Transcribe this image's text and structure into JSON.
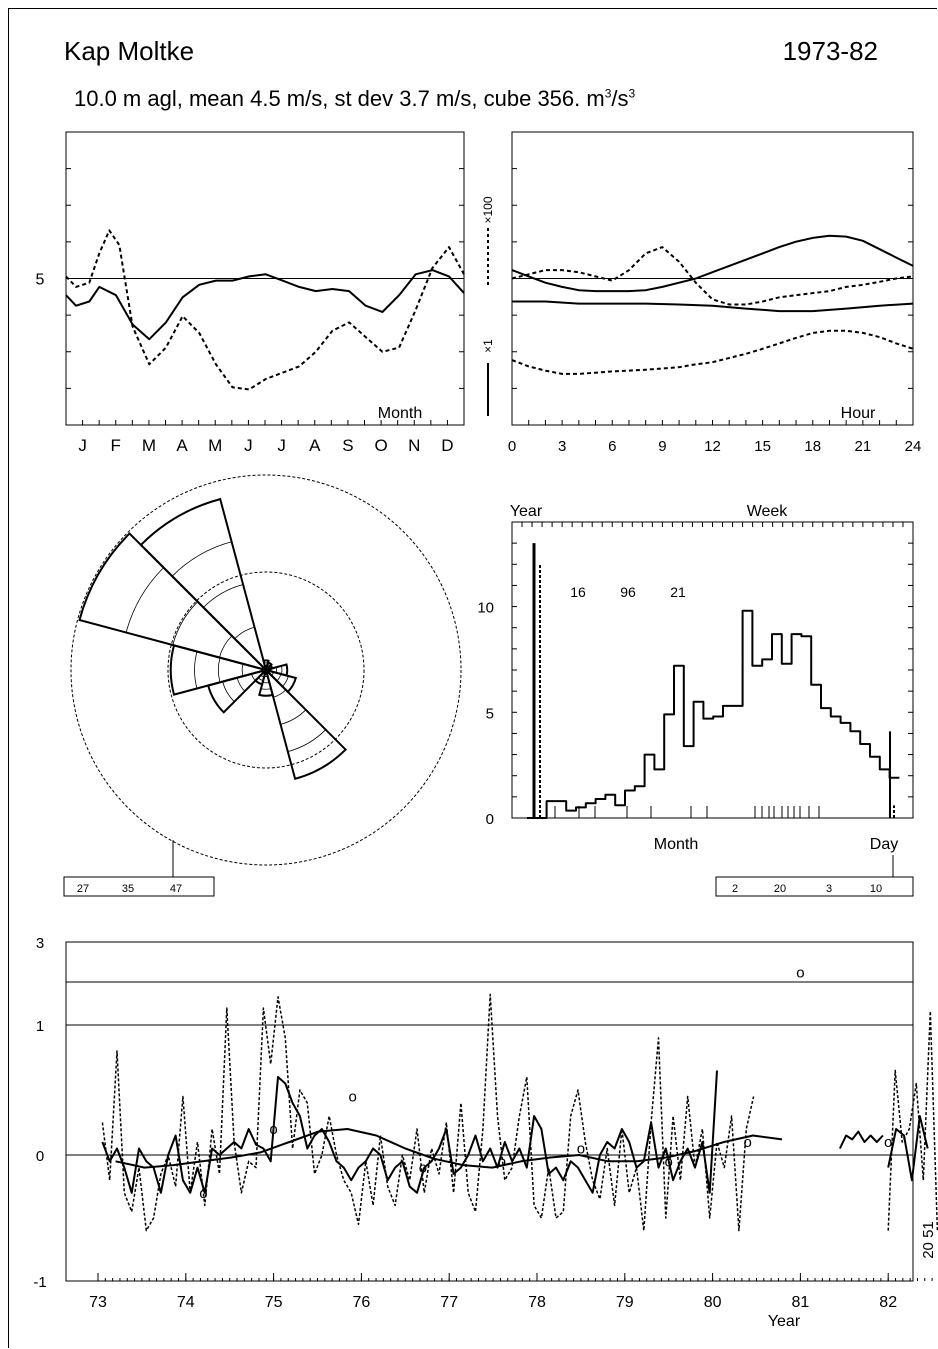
{
  "header": {
    "station": "Kap Moltke",
    "period": "1973-82",
    "stats": "10.0 m agl, mean  4.5 m/s, st dev  3.7 m/s, cube  356. m",
    "stats_unit_sup1": "3",
    "stats_unit_mid": "/s",
    "stats_unit_sup2": "3"
  },
  "chart_data": [
    {
      "id": "annual-cycle",
      "type": "line",
      "xlabel": "Month",
      "categories": [
        "J",
        "F",
        "M",
        "A",
        "M",
        "J",
        "J",
        "A",
        "S",
        "O",
        "N",
        "D"
      ],
      "y_tick_labels": [
        "5"
      ],
      "series": [
        {
          "style": "solid",
          "x": [
            0,
            0.3,
            0.7,
            1.0,
            1.5,
            2.0,
            2.5,
            3.0,
            3.5,
            4.0,
            4.5,
            5.0,
            5.5,
            6.0,
            6.5,
            7.0,
            7.5,
            8.0,
            8.5,
            9.0,
            9.5,
            10.0,
            10.5,
            11.0,
            11.5,
            11.95
          ],
          "values": [
            4.6,
            4.35,
            4.45,
            4.8,
            4.6,
            3.9,
            3.55,
            3.95,
            4.55,
            4.85,
            4.95,
            4.95,
            5.05,
            5.1,
            4.95,
            4.8,
            4.7,
            4.75,
            4.7,
            4.35,
            4.2,
            4.6,
            5.1,
            5.2,
            5.05,
            4.65
          ]
        },
        {
          "style": "dashed",
          "x": [
            0,
            0.3,
            0.7,
            1.0,
            1.3,
            1.6,
            2.0,
            2.5,
            3.0,
            3.5,
            4.0,
            4.5,
            5.0,
            5.5,
            6.0,
            6.5,
            7.0,
            7.5,
            8.0,
            8.5,
            9.0,
            9.5,
            10.0,
            10.5,
            11.0,
            11.5,
            11.95
          ],
          "values": [
            5.05,
            4.8,
            4.9,
            5.6,
            6.15,
            5.8,
            3.85,
            2.95,
            3.35,
            4.1,
            3.7,
            2.95,
            2.4,
            2.35,
            2.6,
            2.75,
            2.9,
            3.25,
            3.75,
            3.95,
            3.6,
            3.25,
            3.35,
            4.25,
            5.25,
            5.75,
            5.1
          ]
        }
      ]
    },
    {
      "id": "diurnal-cycle",
      "type": "line",
      "xlabel": "Hour",
      "x_ticks": [
        "0",
        "3",
        "6",
        "9",
        "12",
        "15",
        "18",
        "21",
        "24"
      ],
      "side_labels": [
        "×100",
        "×1"
      ],
      "series": [
        {
          "style": "solid",
          "x": [
            0,
            1,
            2,
            3,
            4,
            5,
            6,
            7,
            8,
            9,
            10,
            11,
            12,
            13,
            14,
            15,
            16,
            17,
            18,
            19,
            20,
            21,
            22,
            23,
            24
          ],
          "values": [
            5.2,
            5.05,
            4.9,
            4.8,
            4.72,
            4.7,
            4.7,
            4.7,
            4.72,
            4.8,
            4.9,
            5.0,
            5.15,
            5.3,
            5.45,
            5.6,
            5.75,
            5.88,
            5.97,
            6.02,
            6.0,
            5.9,
            5.7,
            5.5,
            5.3
          ]
        },
        {
          "style": "solid",
          "x": [
            0,
            2,
            4,
            6,
            8,
            10,
            12,
            14,
            16,
            18,
            20,
            22,
            24
          ],
          "values": [
            4.45,
            4.45,
            4.4,
            4.4,
            4.4,
            4.38,
            4.35,
            4.28,
            4.22,
            4.22,
            4.28,
            4.35,
            4.4
          ]
        },
        {
          "style": "dashed",
          "x": [
            0,
            1,
            2,
            3,
            4,
            5,
            6,
            7,
            8,
            9,
            10,
            11,
            12,
            13,
            14,
            15,
            16,
            17,
            18,
            19,
            20,
            21,
            22,
            23,
            24
          ],
          "values": [
            5.0,
            5.1,
            5.2,
            5.2,
            5.15,
            5.05,
            4.95,
            5.2,
            5.6,
            5.75,
            5.4,
            4.9,
            4.5,
            4.38,
            4.38,
            4.45,
            4.55,
            4.6,
            4.65,
            4.7,
            4.8,
            4.85,
            4.92,
            5.0,
            5.05
          ]
        },
        {
          "style": "dashed",
          "x": [
            0,
            1,
            2,
            3,
            4,
            5,
            6,
            7,
            8,
            9,
            10,
            11,
            12,
            13,
            14,
            15,
            16,
            17,
            18,
            19,
            20,
            21,
            22,
            23,
            24
          ],
          "values": [
            3.05,
            2.9,
            2.8,
            2.72,
            2.72,
            2.75,
            2.78,
            2.8,
            2.82,
            2.85,
            2.88,
            2.95,
            3.0,
            3.1,
            3.2,
            3.32,
            3.45,
            3.58,
            3.7,
            3.75,
            3.75,
            3.7,
            3.6,
            3.45,
            3.32
          ]
        }
      ]
    },
    {
      "id": "wind-rose",
      "type": "other",
      "subtype": "wind-rose",
      "scale_labels": [
        "27",
        "35",
        "47"
      ],
      "sectors_deg": [
        0,
        30,
        60,
        90,
        120,
        150,
        180,
        210,
        240,
        270,
        300,
        330
      ],
      "frequency_percent": [
        1.5,
        1.2,
        1.0,
        3.3,
        4.8,
        17.5,
        4.0,
        2.3,
        9.3,
        14.8,
        30.0,
        27.5
      ],
      "rings_percent": [
        20,
        40
      ]
    },
    {
      "id": "frequency-distribution",
      "type": "bar",
      "subtype": "step-histogram",
      "top_labels": [
        "Year",
        "Week"
      ],
      "bottom_labels": [
        "Month",
        "Day"
      ],
      "y_tick_labels": [
        "0",
        "5",
        "10"
      ],
      "ylim": [
        0,
        14
      ],
      "annotations": [
        "16",
        "96",
        "21"
      ],
      "box_labels": [
        "2",
        "20",
        "3",
        "10"
      ],
      "bin_width_ms": 1,
      "bin_start_ms": 0,
      "values": [
        0,
        0,
        0.8,
        0.8,
        0.35,
        0.5,
        0.7,
        0.9,
        1.1,
        0.6,
        1.3,
        1.5,
        3.0,
        2.3,
        4.9,
        7.2,
        3.4,
        5.5,
        4.7,
        4.8,
        5.3,
        5.3,
        9.8,
        7.2,
        7.5,
        8.7,
        7.3,
        8.7,
        8.6,
        6.3,
        5.2,
        4.8,
        4.5,
        4.1,
        3.5,
        2.9,
        2.3,
        1.9
      ],
      "year_bar": 13.0,
      "year_bar_dashed": 12.0,
      "day_bar": 4.1,
      "day_bar_dashed": 0.6
    },
    {
      "id": "interannual",
      "type": "line",
      "xlabel": "Year",
      "x_ticks": [
        "73",
        "74",
        "75",
        "76",
        "77",
        "78",
        "79",
        "80",
        "81",
        "82"
      ],
      "y_tick_labels": [
        "-1",
        "0",
        "1",
        "3"
      ],
      "side_label": "20 51",
      "series": [
        {
          "style": "solid-monthly",
          "values": [
            0.1,
            -0.05,
            0.05,
            -0.1,
            -0.3,
            0.05,
            -0.05,
            -0.1,
            -0.3,
            0,
            0.15,
            -0.2,
            -0.3,
            -0.1,
            -0.3,
            0.05,
            0,
            0.05,
            0.1,
            0.05,
            0.2,
            0.08,
            0.05,
            -0.05,
            0.6,
            0.55,
            0.4,
            0.3,
            0.05,
            0.15,
            0.2,
            0.1,
            -0.05,
            -0.1,
            -0.2,
            -0.1,
            -0.05,
            0.05,
            0,
            -0.2,
            -0.1,
            -0.05,
            -0.25,
            -0.3,
            -0.1,
            -0.05,
            0.05,
            0.2,
            -0.15,
            -0.1,
            0,
            0.15,
            -0.05,
            0.05,
            -0.1,
            0.1,
            -0.05,
            0.05,
            -0.1,
            0.3,
            0.2,
            -0.15,
            -0.1,
            -0.2,
            -0.05,
            -0.1,
            -0.2,
            -0.3,
            0,
            0.1,
            0.05,
            0.2,
            0.1,
            -0.1,
            -0.05,
            0.25,
            -0.1,
            0.05,
            -0.2,
            -0.05,
            0.05,
            -0.1,
            0.1,
            -0.3,
            0.65
          ]
        },
        {
          "style": "dashed-monthly",
          "values": [
            0.25,
            -0.2,
            0.8,
            -0.3,
            -0.45,
            -0.1,
            -0.6,
            -0.5,
            -0.15,
            0,
            -0.25,
            0.45,
            -0.3,
            0.1,
            -0.4,
            0.2,
            -0.15,
            1.25,
            0.1,
            -0.3,
            -0.05,
            -0.1,
            1.25,
            0.7,
            1.45,
            0.9,
            0.05,
            0.5,
            0.4,
            -0.15,
            0,
            0.3,
            0,
            -0.2,
            -0.3,
            -0.55,
            -0.05,
            -0.4,
            0.15,
            -0.25,
            -0.4,
            0,
            -0.2,
            0.2,
            -0.3,
            0.05,
            -0.15,
            0.25,
            -0.3,
            0.4,
            -0.3,
            -0.45,
            0.2,
            1.5,
            0.3,
            -0.2,
            -0.1,
            0.3,
            0.6,
            -0.4,
            -0.5,
            -0.1,
            -0.5,
            -0.45,
            0.3,
            0.5,
            0.1,
            -0.2,
            -0.35,
            0.05,
            -0.4,
            0.2,
            -0.3,
            -0.1,
            -0.6,
            0.25,
            0.9,
            -0.5,
            0.3,
            -0.2,
            0.45,
            -0.1,
            0.2,
            -0.5,
            0.1,
            -0.1,
            0.3,
            -0.6,
            0.2,
            0.45
          ]
        },
        {
          "style": "solid-smooth",
          "values": [
            -0.05,
            -0.1,
            -0.08,
            -0.05,
            -0.02,
            0.02,
            0.1,
            0.18,
            0.2,
            0.15,
            0.05,
            -0.03,
            -0.08,
            -0.1,
            -0.05,
            -0.02,
            0,
            -0.05,
            -0.05,
            -0.02,
            0.03,
            0.1,
            0.15,
            0.12
          ]
        },
        {
          "style": "solid-late",
          "x_start_year": 81.45,
          "values": [
            0.05,
            0.15,
            0.12,
            0.18,
            0.1,
            0.15,
            0.1,
            0.15
          ]
        },
        {
          "style": "solid-late2",
          "x_start_year": 82.0,
          "values": [
            -0.1,
            0.2,
            0.15,
            -0.2,
            0.3,
            0.05
          ]
        },
        {
          "style": "dashed-late",
          "x_start_year": 82.0,
          "values": [
            -0.6,
            0.65,
            0.1,
            0.2,
            0.55,
            -0.2,
            1.2,
            -0.6
          ]
        }
      ],
      "annual_markers": {
        "label": "o",
        "years": [
          74.2,
          75.0,
          75.9,
          76.7,
          77.6,
          78.5,
          79.5,
          80.4,
          81.0,
          82.0
        ],
        "values": [
          -0.3,
          0.2,
          0.45,
          -0.1,
          -0.05,
          0.05,
          -0.05,
          0.1,
          2.0,
          0.1
        ]
      },
      "reference_lines": [
        1.0,
        2.0
      ]
    }
  ]
}
